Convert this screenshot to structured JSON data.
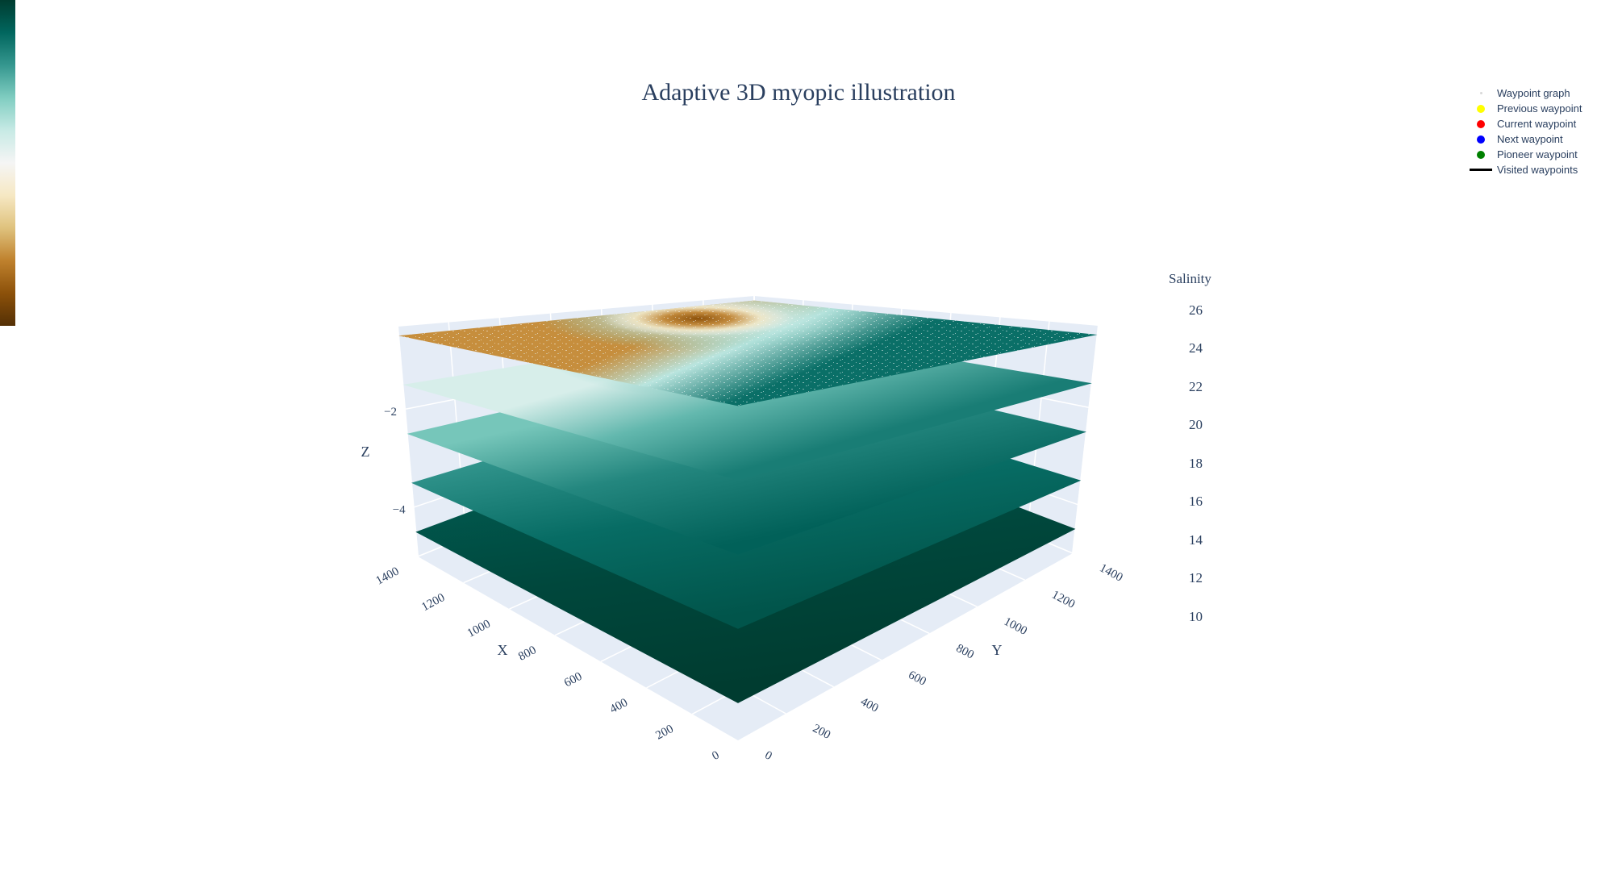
{
  "colors": {
    "plot_bg": "#e5ecf6",
    "grid": "#ffffff",
    "text": "#2a3f5f",
    "colorscale": [
      "#543005",
      "#8c510a",
      "#bf812d",
      "#dfc27d",
      "#f6e8c3",
      "#f5f5f5",
      "#c7eae5",
      "#80cdc1",
      "#35978f",
      "#01665e",
      "#003c30"
    ]
  },
  "chart_data": {
    "type": "surface",
    "title": "Adaptive 3D myopic illustration",
    "axes": {
      "x": {
        "label": "X",
        "range": [
          0,
          1400
        ],
        "ticks": [
          "0",
          "200",
          "400",
          "600",
          "800",
          "1000",
          "1200",
          "1400"
        ]
      },
      "y": {
        "label": "Y",
        "range": [
          0,
          1400
        ],
        "ticks": [
          "0",
          "200",
          "400",
          "600",
          "800",
          "1000",
          "1200",
          "1400"
        ]
      },
      "z": {
        "label": "Z",
        "ticks": [
          "−2",
          "−4"
        ]
      }
    },
    "colorbar": {
      "title": "Salinity",
      "range": [
        10,
        27
      ],
      "ticks": [
        "10",
        "12",
        "14",
        "16",
        "18",
        "20",
        "22",
        "24",
        "26"
      ]
    },
    "layers": [
      {
        "depth": -0.5,
        "min_salinity": 10,
        "max_salinity": 25
      },
      {
        "depth": -1.5,
        "min_salinity": 18,
        "max_salinity": 24.5
      },
      {
        "depth": -2.5,
        "min_salinity": 21,
        "max_salinity": 25.5
      },
      {
        "depth": -3.5,
        "min_salinity": 23,
        "max_salinity": 26
      },
      {
        "depth": -4.5,
        "min_salinity": 25.5,
        "max_salinity": 27
      }
    ],
    "legend": [
      {
        "label": "Waypoint graph",
        "marker": "tiny-dot",
        "color": "#d8d8d8"
      },
      {
        "label": "Previous waypoint",
        "marker": "dot",
        "color": "#ffff00"
      },
      {
        "label": "Current waypoint",
        "marker": "dot",
        "color": "#ff0000"
      },
      {
        "label": "Next waypoint",
        "marker": "dot",
        "color": "#0000ff"
      },
      {
        "label": "Pioneer waypoint",
        "marker": "dot",
        "color": "#008000"
      },
      {
        "label": "Visited waypoints",
        "marker": "line",
        "color": "#000000"
      }
    ]
  }
}
